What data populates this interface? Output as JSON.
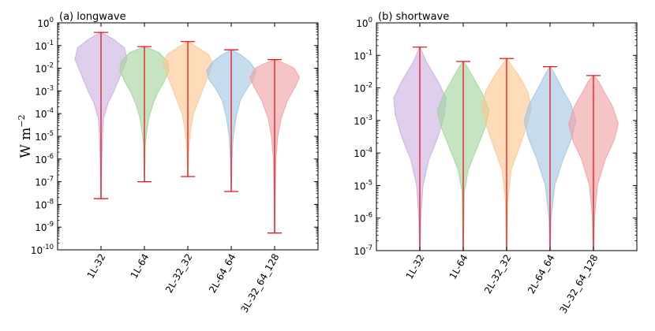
{
  "chart_data": [
    {
      "type": "violin",
      "title": "(a) longwave",
      "ylabel": "W m",
      "ylabel_exponent": "−2",
      "yscale": "log",
      "ylim": [
        1e-10,
        1
      ],
      "yticks": [
        {
          "exp": 0,
          "label": "0"
        },
        {
          "exp": -1,
          "label": "-1"
        },
        {
          "exp": -2,
          "label": "-2"
        },
        {
          "exp": -3,
          "label": "-3"
        },
        {
          "exp": -4,
          "label": "-4"
        },
        {
          "exp": -5,
          "label": "-5"
        },
        {
          "exp": -6,
          "label": "-6"
        },
        {
          "exp": -7,
          "label": "-7"
        },
        {
          "exp": -8,
          "label": "-8"
        },
        {
          "exp": -9,
          "label": "-9"
        },
        {
          "exp": -10,
          "label": "-10"
        }
      ],
      "categories": [
        "1L-32",
        "1L-64",
        "2L-32_32",
        "2L-64_64",
        "3L-32_64_128"
      ],
      "colors": [
        "#c9aee0",
        "#9fd49a",
        "#ffc48a",
        "#9ec4e2",
        "#ef9ea0"
      ],
      "series": [
        {
          "name": "1L-32",
          "min": 1.8e-08,
          "max": 0.38,
          "density": [
            [
              -7.7,
              0.01
            ],
            [
              -6,
              0.03
            ],
            [
              -5,
              0.06
            ],
            [
              -4.2,
              0.1
            ],
            [
              -3.5,
              0.28
            ],
            [
              -3,
              0.5
            ],
            [
              -2.3,
              0.75
            ],
            [
              -1.6,
              1
            ],
            [
              -1.1,
              0.9
            ],
            [
              -0.7,
              0.45
            ],
            [
              -0.42,
              0.01
            ]
          ]
        },
        {
          "name": "1L-64",
          "min": 1e-07,
          "max": 0.09,
          "density": [
            [
              -7,
              0.01
            ],
            [
              -5.4,
              0.03
            ],
            [
              -4.8,
              0.09
            ],
            [
              -4.2,
              0.17
            ],
            [
              -3.6,
              0.32
            ],
            [
              -3.1,
              0.5
            ],
            [
              -2.6,
              0.75
            ],
            [
              -2.1,
              0.95
            ],
            [
              -1.7,
              0.9
            ],
            [
              -1.3,
              0.55
            ],
            [
              -1.05,
              0.01
            ]
          ]
        },
        {
          "name": "2L-32_32",
          "min": 1.7e-07,
          "max": 0.15,
          "density": [
            [
              -6.8,
              0.01
            ],
            [
              -5.6,
              0.03
            ],
            [
              -4.6,
              0.12
            ],
            [
              -4,
              0.22
            ],
            [
              -3.4,
              0.42
            ],
            [
              -2.8,
              0.62
            ],
            [
              -2.3,
              0.8
            ],
            [
              -1.8,
              0.95
            ],
            [
              -1.4,
              0.8
            ],
            [
              -1.1,
              0.4
            ],
            [
              -0.82,
              0.01
            ]
          ]
        },
        {
          "name": "2L-64_64",
          "min": 3.7e-08,
          "max": 0.065,
          "density": [
            [
              -7.4,
              0.01
            ],
            [
              -6,
              0.03
            ],
            [
              -5,
              0.08
            ],
            [
              -4.2,
              0.18
            ],
            [
              -3.4,
              0.35
            ],
            [
              -2.9,
              0.6
            ],
            [
              -2.5,
              0.85
            ],
            [
              -2.1,
              0.95
            ],
            [
              -1.7,
              0.7
            ],
            [
              -1.4,
              0.35
            ],
            [
              -1.19,
              0.01
            ]
          ]
        },
        {
          "name": "3L-32_64_128",
          "min": 5.5e-10,
          "max": 0.024,
          "density": [
            [
              -9.2,
              0.01
            ],
            [
              -7.5,
              0.02
            ],
            [
              -6,
              0.05
            ],
            [
              -5,
              0.12
            ],
            [
              -4.2,
              0.25
            ],
            [
              -3.4,
              0.5
            ],
            [
              -2.8,
              0.8
            ],
            [
              -2.4,
              0.95
            ],
            [
              -2,
              0.75
            ],
            [
              -1.8,
              0.4
            ],
            [
              -1.62,
              0.01
            ]
          ]
        }
      ]
    },
    {
      "type": "violin",
      "title": "(b) shortwave",
      "ylabel": "",
      "yscale": "log",
      "ylim": [
        1e-07,
        1
      ],
      "yticks": [
        {
          "exp": 0,
          "label": "0"
        },
        {
          "exp": -1,
          "label": "-1"
        },
        {
          "exp": -2,
          "label": "-2"
        },
        {
          "exp": -3,
          "label": "-3"
        },
        {
          "exp": -4,
          "label": "-4"
        },
        {
          "exp": -5,
          "label": "-5"
        },
        {
          "exp": -6,
          "label": "-6"
        },
        {
          "exp": -7,
          "label": "-7"
        }
      ],
      "categories": [
        "1L-32",
        "1L-64",
        "2L-32_32",
        "2L-64_64",
        "3L-32_64_128"
      ],
      "colors": [
        "#c9aee0",
        "#9fd49a",
        "#ffc48a",
        "#9ec4e2",
        "#ef9ea0"
      ],
      "series": [
        {
          "name": "1L-32",
          "min": 1e-07,
          "max": 0.18,
          "density": [
            [
              -7,
              0.01
            ],
            [
              -6,
              0.04
            ],
            [
              -5,
              0.12
            ],
            [
              -4.2,
              0.35
            ],
            [
              -3.5,
              0.7
            ],
            [
              -2.8,
              0.95
            ],
            [
              -2.3,
              1
            ],
            [
              -1.8,
              0.7
            ],
            [
              -1.2,
              0.25
            ],
            [
              -0.75,
              0.01
            ]
          ]
        },
        {
          "name": "1L-64",
          "min": 1e-07,
          "max": 0.065,
          "density": [
            [
              -7,
              0.01
            ],
            [
              -5.2,
              0.04
            ],
            [
              -4.5,
              0.2
            ],
            [
              -3.8,
              0.55
            ],
            [
              -3.2,
              0.85
            ],
            [
              -2.7,
              1
            ],
            [
              -2.2,
              0.75
            ],
            [
              -1.7,
              0.4
            ],
            [
              -1.35,
              0.15
            ],
            [
              -1.19,
              0.01
            ]
          ]
        },
        {
          "name": "2L-32_32",
          "min": 1e-07,
          "max": 0.08,
          "density": [
            [
              -7,
              0.01
            ],
            [
              -5.5,
              0.04
            ],
            [
              -4.5,
              0.18
            ],
            [
              -3.8,
              0.5
            ],
            [
              -3.1,
              0.8
            ],
            [
              -2.6,
              0.95
            ],
            [
              -2.1,
              0.8
            ],
            [
              -1.6,
              0.45
            ],
            [
              -1.3,
              0.18
            ],
            [
              -1.1,
              0.01
            ]
          ]
        },
        {
          "name": "2L-64_64",
          "min": 1e-07,
          "max": 0.045,
          "density": [
            [
              -7,
              0.01
            ],
            [
              -6,
              0.04
            ],
            [
              -5,
              0.18
            ],
            [
              -4.2,
              0.5
            ],
            [
              -3.5,
              0.85
            ],
            [
              -3,
              1
            ],
            [
              -2.5,
              0.8
            ],
            [
              -2,
              0.45
            ],
            [
              -1.6,
              0.2
            ],
            [
              -1.35,
              0.01
            ]
          ]
        },
        {
          "name": "3L-32_64_128",
          "min": 1e-07,
          "max": 0.024,
          "density": [
            [
              -7,
              0.01
            ],
            [
              -6,
              0.04
            ],
            [
              -5,
              0.15
            ],
            [
              -4.2,
              0.45
            ],
            [
              -3.6,
              0.8
            ],
            [
              -3.1,
              0.95
            ],
            [
              -2.6,
              0.75
            ],
            [
              -2.1,
              0.4
            ],
            [
              -1.8,
              0.2
            ],
            [
              -1.62,
              0.01
            ]
          ]
        }
      ]
    }
  ]
}
